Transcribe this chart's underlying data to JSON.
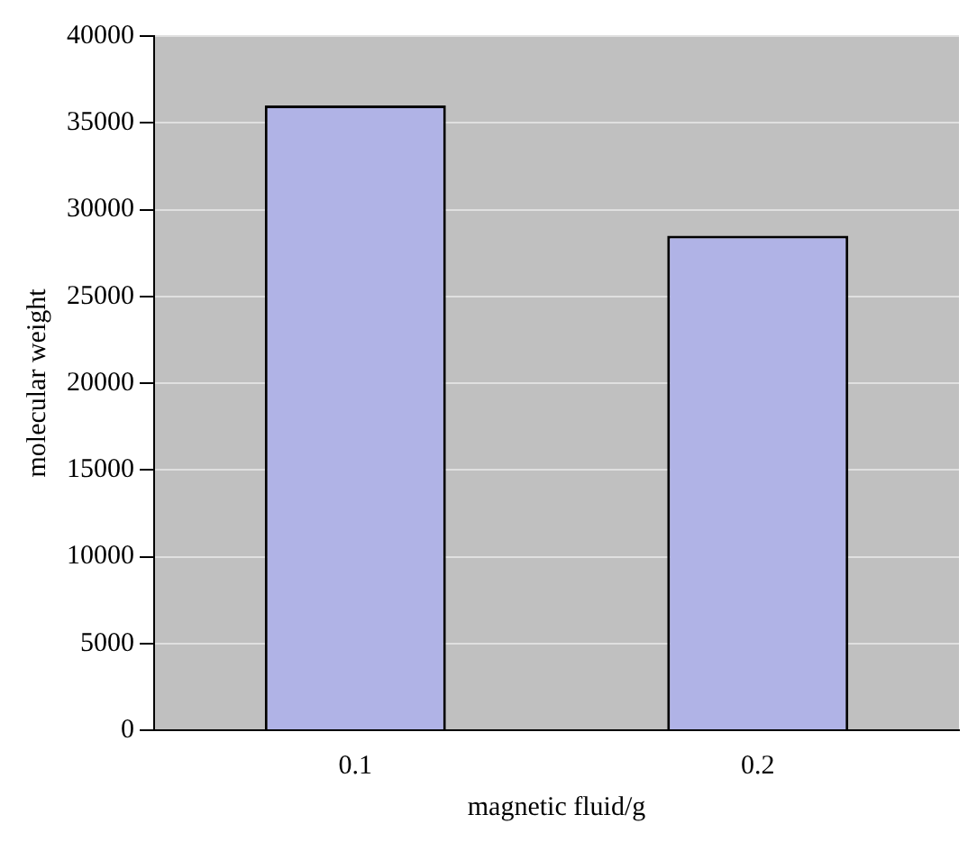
{
  "chart_data": {
    "type": "bar",
    "xlabel": "magnetic fluid/g",
    "ylabel": "molecular weight",
    "categories": [
      "0.1",
      "0.2"
    ],
    "values": [
      36000,
      28500
    ],
    "color": "#b0b3e6",
    "ylim": [
      0,
      40000
    ],
    "yticks": [
      0,
      5000,
      10000,
      15000,
      20000,
      25000,
      30000,
      35000,
      40000
    ],
    "grid": "y",
    "legend": false
  }
}
